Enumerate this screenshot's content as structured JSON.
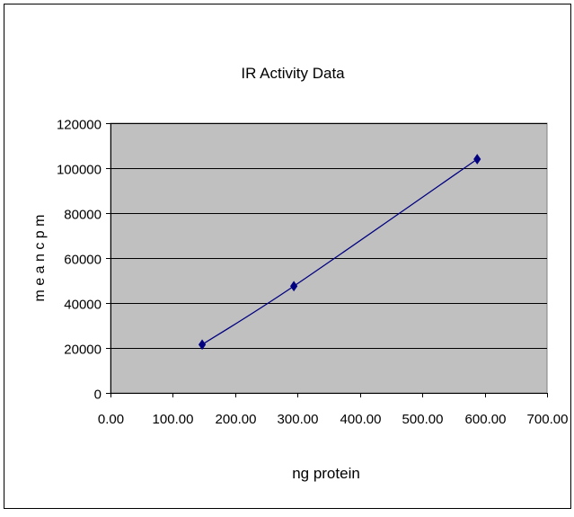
{
  "chart_data": {
    "type": "scatter",
    "title": "IR Activity Data",
    "xlabel": "ng protein",
    "ylabel": "m e a n  c p m",
    "xlim": [
      0,
      700
    ],
    "ylim": [
      0,
      120000
    ],
    "x_ticks": [
      "0.00",
      "100.00",
      "200.00",
      "300.00",
      "400.00",
      "500.00",
      "600.00",
      "700.00"
    ],
    "y_ticks": [
      "0",
      "20000",
      "40000",
      "60000",
      "80000",
      "100000",
      "120000"
    ],
    "grid": "horizontal",
    "legend": "none",
    "series": [
      {
        "marker": "diamond",
        "line": "smooth",
        "color": "#000080",
        "points": [
          {
            "x": 147,
            "y": 21500
          },
          {
            "x": 294,
            "y": 47500
          },
          {
            "x": 588,
            "y": 104000
          }
        ]
      }
    ],
    "colors": {
      "plot_background": "#c0c0c0",
      "grid": "#000000",
      "series": "#000080",
      "frame": "#000000"
    }
  }
}
